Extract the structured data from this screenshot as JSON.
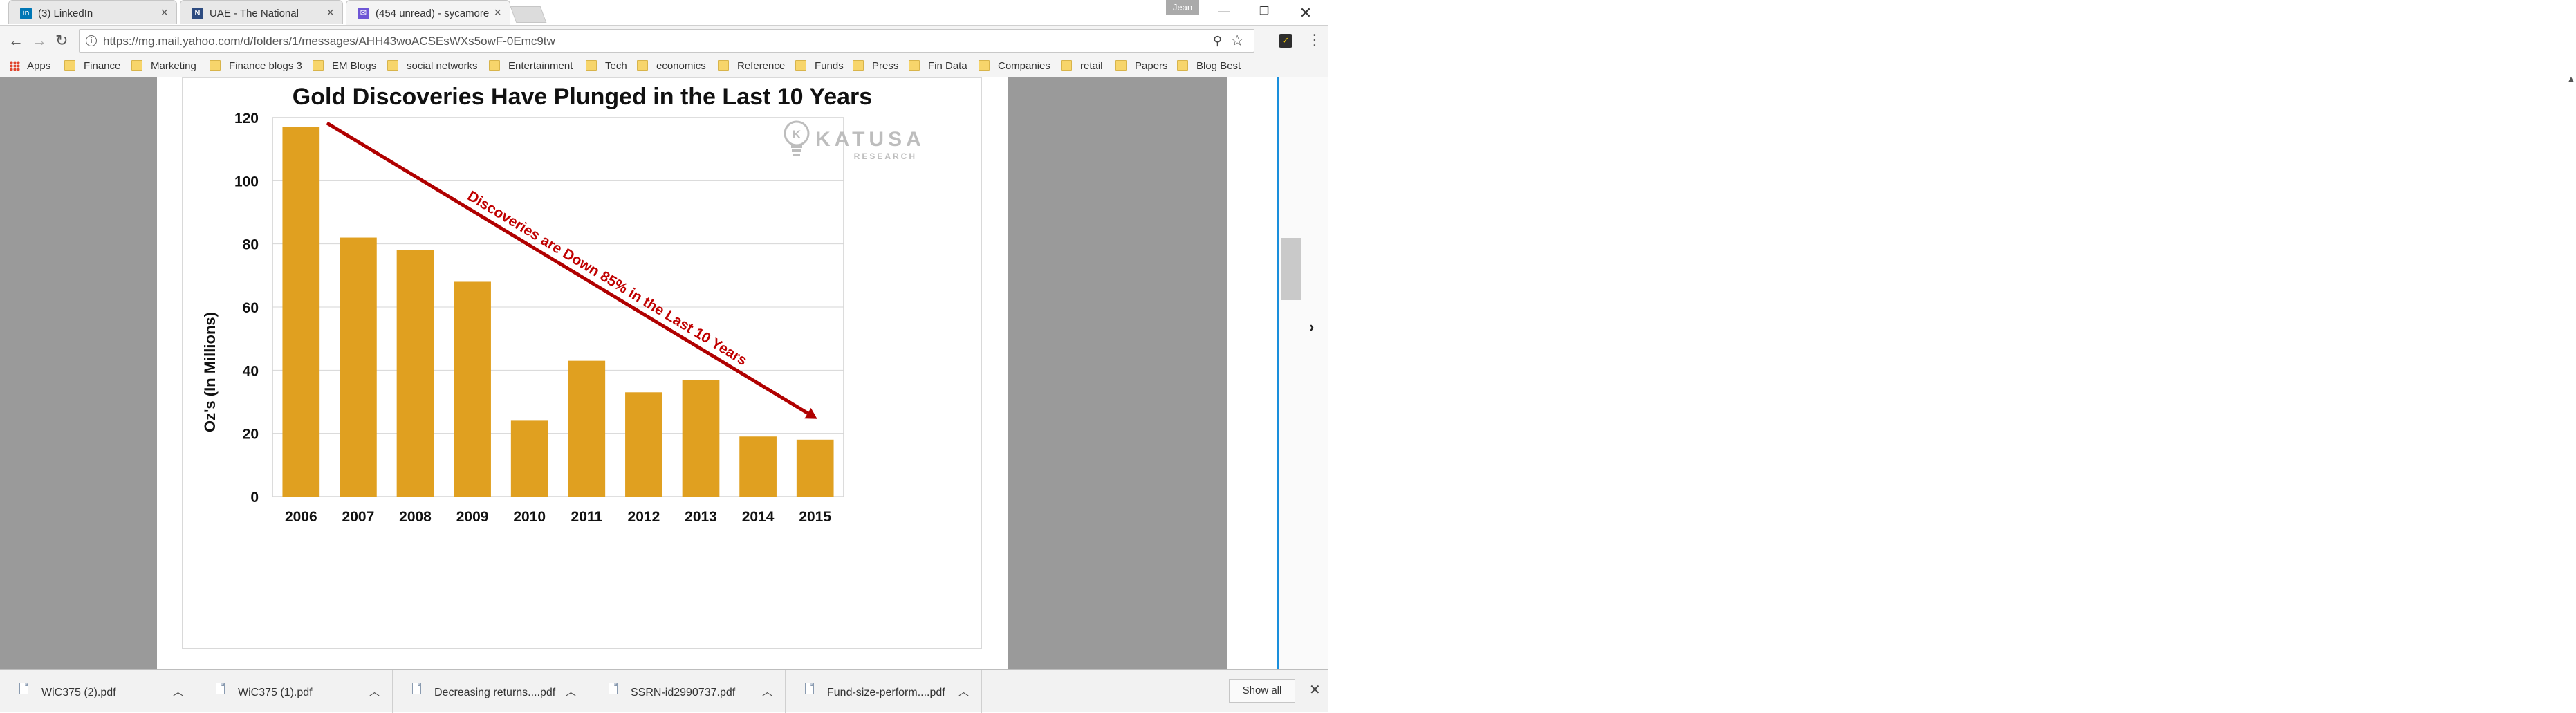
{
  "tabs": [
    {
      "title": "(3) LinkedIn",
      "icon": "linkedin-icon",
      "color": "#0077b5"
    },
    {
      "title": "UAE - The National",
      "icon": "the-national-icon",
      "color": "#2d4b80"
    },
    {
      "title": "(454 unread) - sycamore",
      "icon": "yahoo-mail-icon",
      "color": "#6e56d6",
      "active": true
    }
  ],
  "profile_name": "Jean",
  "url": "https://mg.mail.yahoo.com/d/folders/1/messages/AHH43woACSEsWXs5owF-0Emc9tw",
  "bookmarks": {
    "apps_label": "Apps",
    "folders": [
      "Finance",
      "Marketing",
      "Finance blogs 3",
      "EM Blogs",
      "social networks",
      "Entertainment",
      "Tech",
      "economics",
      "Reference",
      "Funds",
      "Press",
      "Fin Data",
      "Companies",
      "retail",
      "Papers",
      "Blog Best"
    ]
  },
  "chart_data": {
    "type": "bar",
    "title": "Gold Discoveries Have Plunged in the Last 10 Years",
    "ylabel": "Oz's (In Millions)",
    "xlabel": "",
    "categories": [
      "2006",
      "2007",
      "2008",
      "2009",
      "2010",
      "2011",
      "2012",
      "2013",
      "2014",
      "2015"
    ],
    "values": [
      117,
      82,
      78,
      68,
      24,
      43,
      33,
      37,
      19,
      18
    ],
    "ylim": [
      0,
      120
    ],
    "yticks": [
      0,
      20,
      40,
      60,
      80,
      100,
      120
    ],
    "grid": true,
    "bar_color": "#e0a020",
    "annotation": {
      "text": "Discoveries are Down 85% in the Last 10 Years",
      "color": "#c00000",
      "from_category": "2006",
      "to_category": "2015"
    },
    "watermark": {
      "name": "KATUSA",
      "sub": "RESEARCH"
    }
  },
  "downloads": [
    "WiC375 (2).pdf",
    "WiC375 (1).pdf",
    "Decreasing returns....pdf",
    "SSRN-id2990737.pdf",
    "Fund-size-perform....pdf"
  ],
  "show_all_label": "Show all"
}
